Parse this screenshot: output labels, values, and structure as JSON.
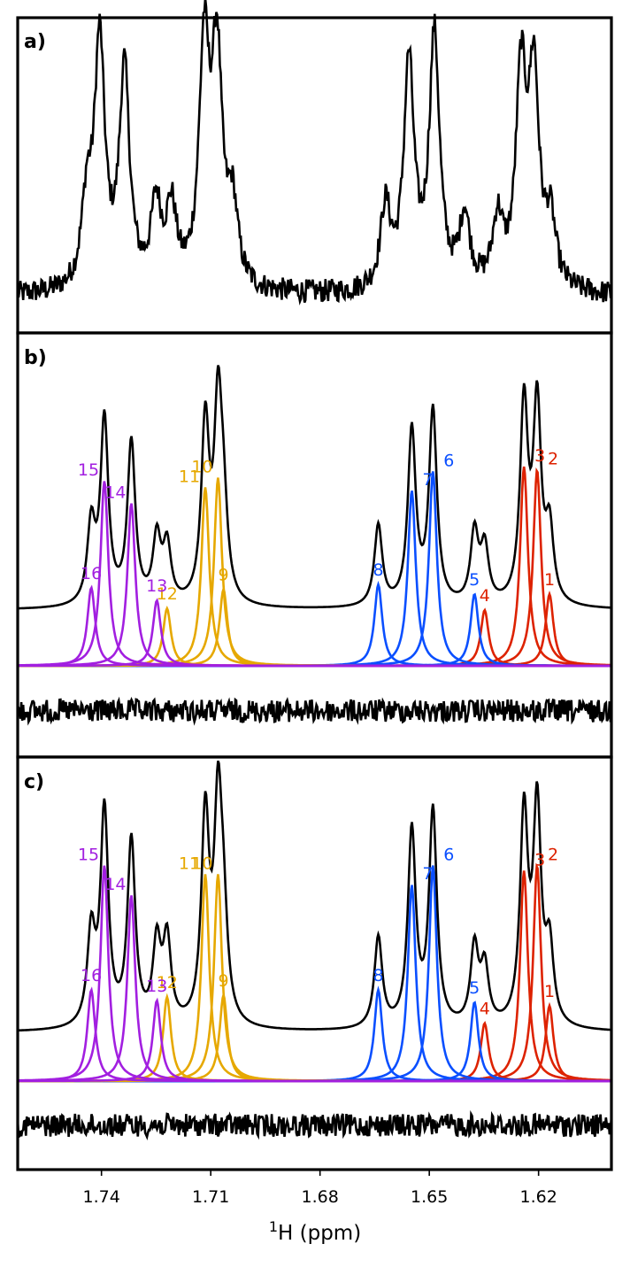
{
  "chart_data": {
    "type": "line",
    "x_axis": {
      "label_prefix": "1",
      "label_suffix": "H (ppm)",
      "xlim": [
        1.763,
        1.6
      ],
      "reversed": true,
      "ticks": [
        "1.74",
        "1.71",
        "1.68",
        "1.65",
        "1.62"
      ]
    },
    "group_colors": {
      "red": "#dd2200",
      "blue": "#0a4fff",
      "yellow": "#e6a800",
      "purple": "#a21fe0",
      "black": "#000000"
    },
    "panels": [
      {
        "tag": "a)",
        "description": "experimental spectrum",
        "peaks": [
          {
            "id": "1",
            "x": 1.6167,
            "y": 7.0,
            "group": "red"
          },
          {
            "id": "2",
            "x": 1.6213,
            "y": 23.0,
            "group": "red"
          },
          {
            "id": "3",
            "x": 1.6248,
            "y": 23.0,
            "group": "red"
          },
          {
            "id": "4",
            "x": 1.6312,
            "y": 7.5,
            "group": "red"
          },
          {
            "id": "5",
            "x": 1.6403,
            "y": 8.0,
            "group": "blue"
          },
          {
            "id": "6",
            "x": 1.6486,
            "y": 28.0,
            "group": "blue"
          },
          {
            "id": "7",
            "x": 1.6556,
            "y": 25.0,
            "group": "blue"
          },
          {
            "id": "8",
            "x": 1.662,
            "y": 9.0,
            "group": "blue"
          },
          {
            "id": "9",
            "x": 1.704,
            "y": 8.5,
            "group": "yellow"
          },
          {
            "id": "10",
            "x": 1.7083,
            "y": 25.0,
            "group": "yellow"
          },
          {
            "id": "11",
            "x": 1.7118,
            "y": 26.0,
            "group": "yellow"
          },
          {
            "id": "12",
            "x": 1.7208,
            "y": 8.5,
            "group": "yellow"
          },
          {
            "id": "13",
            "x": 1.725,
            "y": 9.0,
            "group": "purple"
          },
          {
            "id": "14",
            "x": 1.7337,
            "y": 24.0,
            "group": "purple"
          },
          {
            "id": "15",
            "x": 1.7405,
            "y": 27.0,
            "group": "purple"
          },
          {
            "id": "16",
            "x": 1.744,
            "y": 9.0,
            "group": "purple"
          }
        ]
      },
      {
        "tag": "b)",
        "description": "fit with individual Lorentzian components and residual",
        "components": [
          {
            "id": "1",
            "x": 1.617,
            "height": 0.45,
            "group": "red"
          },
          {
            "id": "2",
            "x": 1.6204,
            "height": 1.23,
            "group": "red"
          },
          {
            "id": "3",
            "x": 1.624,
            "height": 1.25,
            "group": "red"
          },
          {
            "id": "4",
            "x": 1.6348,
            "height": 0.35,
            "group": "red"
          },
          {
            "id": "5",
            "x": 1.6376,
            "height": 0.45,
            "group": "blue"
          },
          {
            "id": "6",
            "x": 1.649,
            "height": 1.22,
            "group": "blue"
          },
          {
            "id": "7",
            "x": 1.6548,
            "height": 1.1,
            "group": "blue"
          },
          {
            "id": "8",
            "x": 1.664,
            "height": 0.51,
            "group": "blue"
          },
          {
            "id": "9",
            "x": 1.7065,
            "height": 0.48,
            "group": "yellow"
          },
          {
            "id": "10",
            "x": 1.708,
            "height": 1.18,
            "group": "yellow"
          },
          {
            "id": "11",
            "x": 1.7115,
            "height": 1.12,
            "group": "yellow"
          },
          {
            "id": "12",
            "x": 1.722,
            "height": 0.36,
            "group": "yellow"
          },
          {
            "id": "13",
            "x": 1.7248,
            "height": 0.41,
            "group": "purple"
          },
          {
            "id": "14",
            "x": 1.7318,
            "height": 1.02,
            "group": "purple"
          },
          {
            "id": "15",
            "x": 1.7392,
            "height": 1.16,
            "group": "purple"
          },
          {
            "id": "16",
            "x": 1.7428,
            "height": 0.49,
            "group": "purple"
          }
        ]
      },
      {
        "tag": "c)",
        "description": "fit with individual Lorentzian components and residual",
        "components": [
          {
            "id": "1",
            "x": 1.617,
            "height": 0.43,
            "group": "red"
          },
          {
            "id": "2",
            "x": 1.6204,
            "height": 1.23,
            "group": "red"
          },
          {
            "id": "3",
            "x": 1.624,
            "height": 1.2,
            "group": "red"
          },
          {
            "id": "4",
            "x": 1.6348,
            "height": 0.33,
            "group": "red"
          },
          {
            "id": "5",
            "x": 1.6376,
            "height": 0.45,
            "group": "blue"
          },
          {
            "id": "6",
            "x": 1.649,
            "height": 1.23,
            "group": "blue"
          },
          {
            "id": "7",
            "x": 1.6548,
            "height": 1.12,
            "group": "blue"
          },
          {
            "id": "8",
            "x": 1.664,
            "height": 0.52,
            "group": "blue"
          },
          {
            "id": "9",
            "x": 1.7065,
            "height": 0.49,
            "group": "yellow"
          },
          {
            "id": "10",
            "x": 1.708,
            "height": 1.18,
            "group": "yellow"
          },
          {
            "id": "11",
            "x": 1.7115,
            "height": 1.18,
            "group": "yellow"
          },
          {
            "id": "12",
            "x": 1.722,
            "height": 0.48,
            "group": "yellow"
          },
          {
            "id": "13",
            "x": 1.7248,
            "height": 0.46,
            "group": "purple"
          },
          {
            "id": "14",
            "x": 1.7318,
            "height": 1.06,
            "group": "purple"
          },
          {
            "id": "15",
            "x": 1.7392,
            "height": 1.23,
            "group": "purple"
          },
          {
            "id": "16",
            "x": 1.7428,
            "height": 0.52,
            "group": "purple"
          }
        ]
      }
    ]
  }
}
